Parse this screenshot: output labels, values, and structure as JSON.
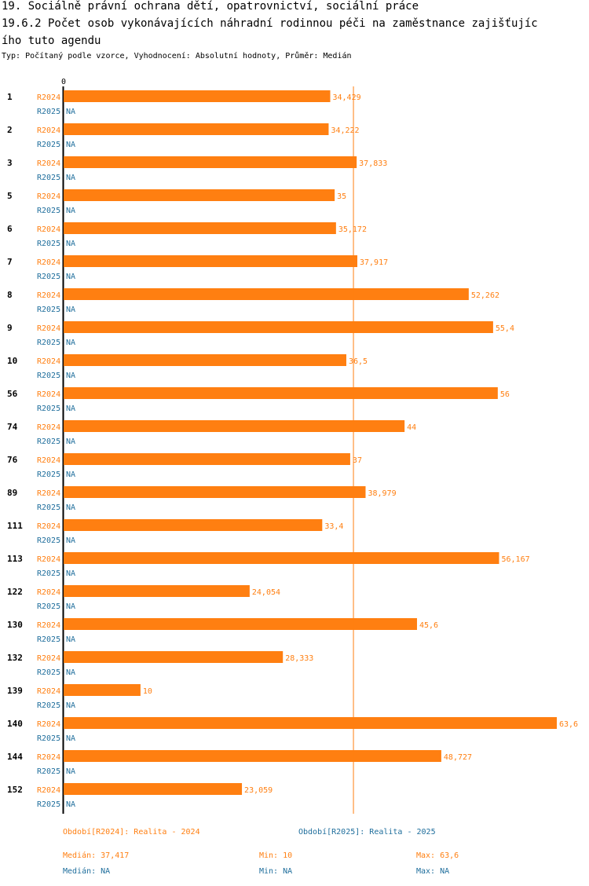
{
  "title_lines": [
    "19. Sociálně právní ochrana dětí, opatrovnictví, sociální práce",
    "19.6.2 Počet osob vykonávajících náhradní rodinnou péči na zaměstnance zajišťujíc",
    "ího tuto agendu"
  ],
  "subtitle": "Typ: Počítaný podle vzorce, Vyhodnocení: Absolutní hodnoty, Průměr: Medián",
  "colors": {
    "r2024": "#ff7f11",
    "r2025": "#1f6e9c",
    "axis": "#000000"
  },
  "chart_data": {
    "type": "bar",
    "orientation": "horizontal",
    "axis_zero_label": "0",
    "categories": [
      "1",
      "2",
      "3",
      "5",
      "6",
      "7",
      "8",
      "9",
      "10",
      "56",
      "74",
      "76",
      "89",
      "111",
      "113",
      "122",
      "130",
      "132",
      "139",
      "140",
      "144",
      "152"
    ],
    "series": [
      {
        "name": "R2024",
        "values": [
          34.429,
          34.222,
          37.833,
          35,
          35.172,
          37.917,
          52.262,
          55.4,
          36.5,
          56,
          44,
          37,
          38.979,
          33.4,
          56.167,
          24.054,
          45.6,
          28.333,
          10,
          63.6,
          48.727,
          23.059
        ],
        "labels": [
          "34,429",
          "34,222",
          "37,833",
          "35",
          "35,172",
          "37,917",
          "52,262",
          "55,4",
          "36,5",
          "56",
          "44",
          "37",
          "38,979",
          "33,4",
          "56,167",
          "24,054",
          "45,6",
          "28,333",
          "10",
          "63,6",
          "48,727",
          "23,059"
        ]
      },
      {
        "name": "R2025",
        "values": [
          null,
          null,
          null,
          null,
          null,
          null,
          null,
          null,
          null,
          null,
          null,
          null,
          null,
          null,
          null,
          null,
          null,
          null,
          null,
          null,
          null,
          null
        ],
        "labels": [
          "NA",
          "NA",
          "NA",
          "NA",
          "NA",
          "NA",
          "NA",
          "NA",
          "NA",
          "NA",
          "NA",
          "NA",
          "NA",
          "NA",
          "NA",
          "NA",
          "NA",
          "NA",
          "NA",
          "NA",
          "NA",
          "NA"
        ]
      }
    ],
    "xlim": [
      0,
      63.6
    ],
    "median_line": 37.417
  },
  "footer": {
    "legend_2024": "Období[R2024]: Realita - 2024",
    "legend_2025": "Období[R2025]: Realita - 2025",
    "median_2024": "Medián: 37,417",
    "min_2024": "Min: 10",
    "max_2024": "Max: 63,6",
    "median_2025": "Medián: NA",
    "min_2025": "Min: NA",
    "max_2025": "Max: NA"
  }
}
